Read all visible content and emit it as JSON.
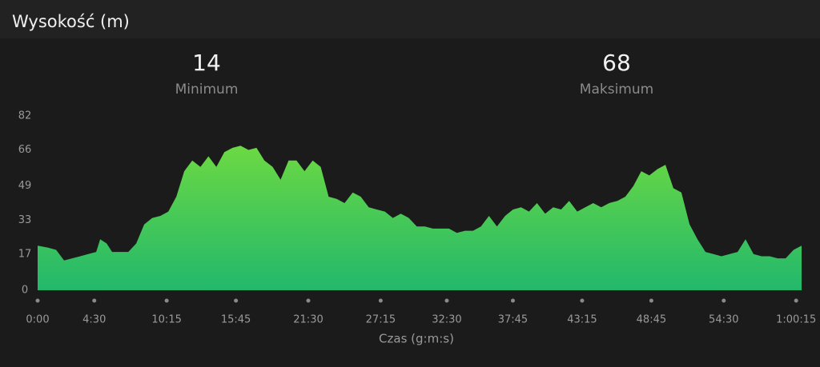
{
  "chart_data": {
    "type": "area",
    "title": "Wysokość (m)",
    "summary": [
      {
        "value": 14,
        "label": "Minimum"
      },
      {
        "value": 68,
        "label": "Maksimum"
      }
    ],
    "x_label": "Czas (g:m:s)",
    "x": [
      0,
      50,
      88,
      126,
      164,
      203,
      241,
      279,
      298,
      329,
      355,
      394,
      432,
      470,
      508,
      546,
      585,
      623,
      661,
      699,
      737,
      776,
      814,
      852,
      890,
      929,
      967,
      1005,
      1043,
      1081,
      1120,
      1158,
      1196,
      1234,
      1272,
      1311,
      1349,
      1387,
      1425,
      1463,
      1502,
      1540,
      1578,
      1616,
      1655,
      1693,
      1731,
      1769,
      1807,
      1846,
      1884,
      1922,
      1960,
      1998,
      2037,
      2075,
      2113,
      2151,
      2189,
      2228,
      2266,
      2304,
      2342,
      2380,
      2419,
      2457,
      2495,
      2533,
      2572,
      2610,
      2648,
      2686,
      2724,
      2763,
      2801,
      2839,
      2877,
      2915,
      2954,
      2992,
      3030,
      3068,
      3107,
      3145,
      3183,
      3221,
      3259,
      3298,
      3336,
      3374,
      3412,
      3450,
      3489,
      3527,
      3565,
      3603,
      3641
    ],
    "y": [
      21,
      20,
      19,
      14,
      15,
      16,
      17,
      18,
      24,
      22,
      18,
      18,
      18,
      22,
      31,
      34,
      35,
      37,
      44,
      56,
      61,
      58,
      63,
      58,
      65,
      67,
      68,
      66,
      67,
      61,
      58,
      52,
      61,
      61,
      56,
      61,
      58,
      44,
      43,
      41,
      46,
      44,
      39,
      38,
      37,
      34,
      36,
      34,
      30,
      30,
      29,
      29,
      29,
      27,
      28,
      28,
      30,
      35,
      30,
      35,
      38,
      39,
      37,
      41,
      36,
      39,
      38,
      42,
      37,
      39,
      41,
      39,
      41,
      42,
      44,
      49,
      56,
      54,
      57,
      59,
      48,
      46,
      31,
      24,
      18,
      17,
      16,
      17,
      18,
      24,
      17,
      16,
      16,
      15,
      15,
      19,
      21
    ],
    "color_top": "#7be03a",
    "color_bottom": "#22b86c",
    "xlim": [
      0,
      3641
    ],
    "xticks": [
      {
        "value": 0,
        "label": "0:00"
      },
      {
        "value": 270,
        "label": "4:30"
      },
      {
        "value": 615,
        "label": "10:15"
      },
      {
        "value": 945,
        "label": "15:45"
      },
      {
        "value": 1290,
        "label": "21:30"
      },
      {
        "value": 1635,
        "label": "27:15"
      },
      {
        "value": 1950,
        "label": "32:30"
      },
      {
        "value": 2265,
        "label": "37:45"
      },
      {
        "value": 2595,
        "label": "43:15"
      },
      {
        "value": 2925,
        "label": "48:45"
      },
      {
        "value": 3270,
        "label": "54:30"
      },
      {
        "value": 3615,
        "label": "1:00:15"
      }
    ],
    "ylim": [
      0,
      82
    ],
    "yticks": [
      0,
      17,
      33,
      49,
      66,
      82
    ],
    "grid": false
  }
}
